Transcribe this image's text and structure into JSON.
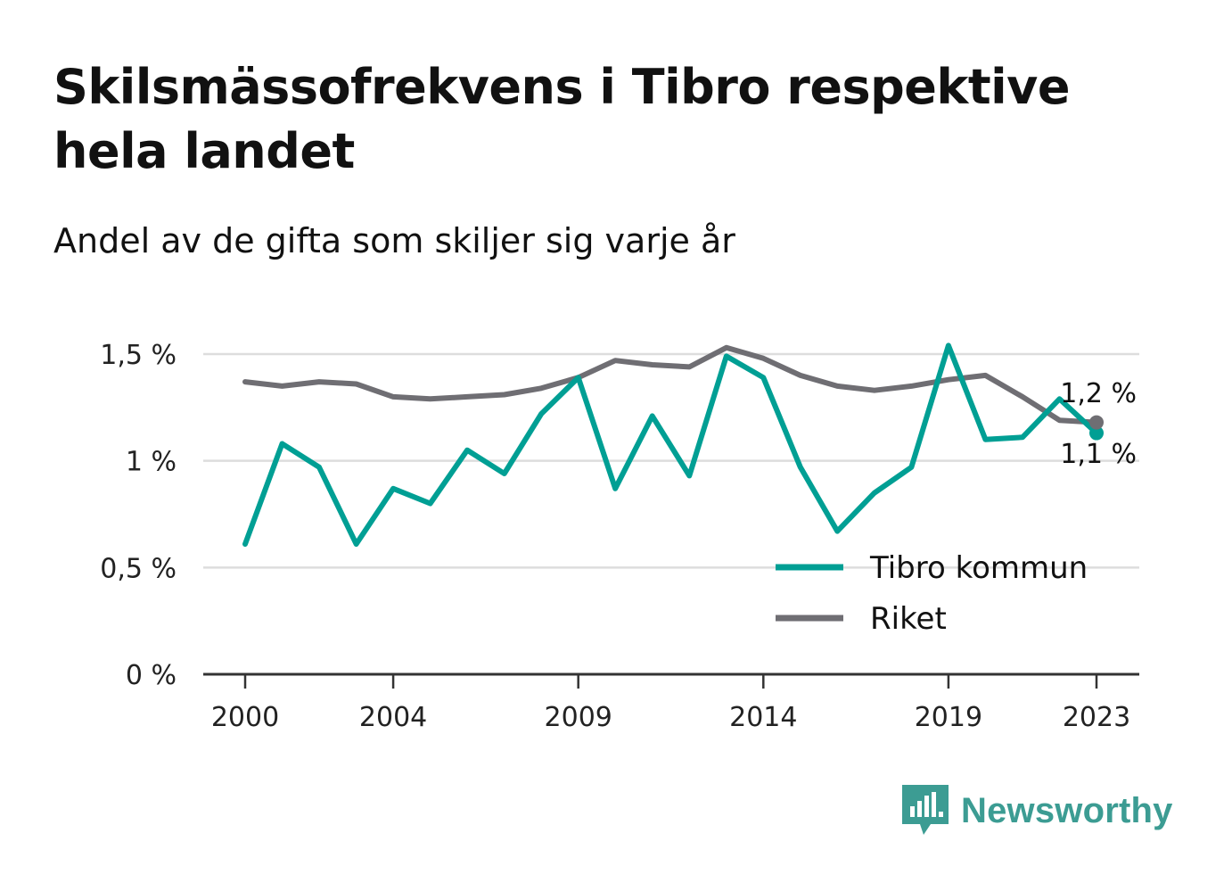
{
  "title": "Skilsmässofrekvens i Tibro respektive hela landet",
  "subtitle": "Andel av de gifta som skiljer sig varje år",
  "brand": {
    "name": "Newsworthy",
    "icon": "newsworthy-logo-icon",
    "color": "#3c9c93"
  },
  "colors": {
    "tibro": "#009f94",
    "riket": "#6f6e73",
    "grid": "#dddddd",
    "axis": "#333333"
  },
  "chart_data": {
    "type": "line",
    "x": [
      2000,
      2001,
      2002,
      2003,
      2004,
      2005,
      2006,
      2007,
      2008,
      2009,
      2010,
      2011,
      2012,
      2013,
      2014,
      2015,
      2016,
      2017,
      2018,
      2019,
      2020,
      2021,
      2022,
      2023
    ],
    "x_ticks": [
      2000,
      2004,
      2009,
      2014,
      2019,
      2023
    ],
    "x_tick_labels": [
      "2000",
      "2004",
      "2009",
      "2014",
      "2019",
      "2023"
    ],
    "y_ticks": [
      0,
      0.5,
      1,
      1.5
    ],
    "y_tick_labels": [
      "0 %",
      "0,5 %",
      "1 %",
      "1,5 %"
    ],
    "ylim": [
      0,
      1.5
    ],
    "grid": true,
    "legend_position": "bottom-right",
    "series": [
      {
        "name": "Tibro kommun",
        "color": "#009f94",
        "values": [
          0.61,
          1.08,
          0.97,
          0.61,
          0.87,
          0.8,
          1.05,
          0.94,
          1.22,
          1.39,
          0.87,
          1.21,
          0.93,
          1.49,
          1.39,
          0.97,
          0.67,
          0.85,
          0.97,
          1.54,
          1.1,
          1.11,
          1.29,
          1.13
        ],
        "end_label": "1,1 %"
      },
      {
        "name": "Riket",
        "color": "#6f6e73",
        "values": [
          1.37,
          1.35,
          1.37,
          1.36,
          1.3,
          1.29,
          1.3,
          1.31,
          1.34,
          1.39,
          1.47,
          1.45,
          1.44,
          1.53,
          1.48,
          1.4,
          1.35,
          1.33,
          1.35,
          1.38,
          1.4,
          1.3,
          1.19,
          1.18
        ],
        "end_label": "1,2 %"
      }
    ]
  }
}
